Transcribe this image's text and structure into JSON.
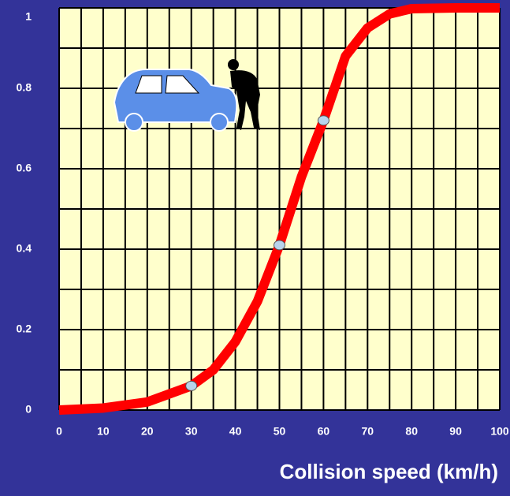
{
  "chart_data": {
    "type": "line",
    "x_label": "Collision speed  (km/h)",
    "x": [
      0,
      10,
      20,
      30,
      35,
      40,
      45,
      50,
      55,
      60,
      65,
      70,
      75,
      80,
      90,
      100
    ],
    "series": [
      {
        "color": "#ff0000",
        "values": [
          0,
          0.005,
          0.02,
          0.06,
          0.1,
          0.17,
          0.27,
          0.41,
          0.58,
          0.72,
          0.88,
          0.95,
          0.985,
          0.998,
          1,
          1
        ]
      }
    ],
    "markers": {
      "x": [
        30,
        50,
        60
      ],
      "values": [
        0.06,
        0.41,
        0.72
      ],
      "color": "#b8d4ec"
    },
    "xlim": [
      0,
      100
    ],
    "ylim": [
      0,
      1
    ],
    "xticks": [
      0,
      10,
      20,
      30,
      40,
      50,
      60,
      70,
      80,
      90,
      100
    ],
    "yticks": [
      0,
      0.2,
      0.4,
      0.6,
      0.8,
      1
    ],
    "grid": true,
    "plot_color": "#ffffcc"
  }
}
